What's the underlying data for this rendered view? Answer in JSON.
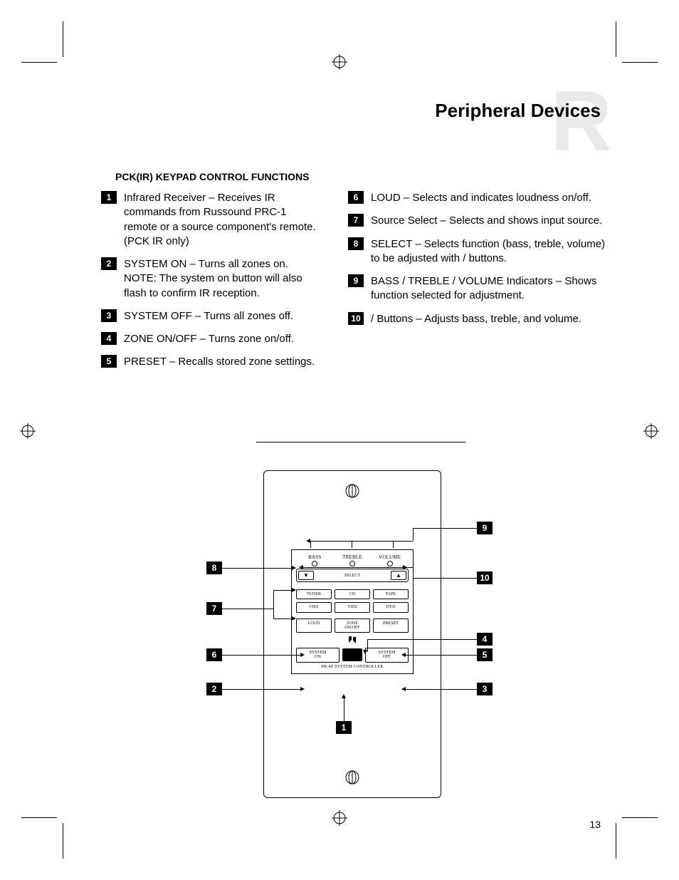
{
  "header": {
    "watermark_letter": "R",
    "page_title": "Peripheral Devices"
  },
  "section": {
    "heading": "PCK(IR) KEYPAD CONTROL FUNCTIONS"
  },
  "functions_left": [
    {
      "n": "1",
      "text": "Infrared Receiver – Receives IR commands from Russound PRC-1 remote or a source component's remote. (PCK IR only)"
    },
    {
      "n": "2",
      "text": "SYSTEM ON – Turns all zones on. NOTE: The system on button will also flash to confirm IR reception."
    },
    {
      "n": "3",
      "text": "SYSTEM OFF – Turns all zones off."
    },
    {
      "n": "4",
      "text": "ZONE ON/OFF – Turns zone on/off."
    },
    {
      "n": "5",
      "text": "PRESET – Recalls stored zone settings."
    }
  ],
  "functions_right": [
    {
      "n": "6",
      "text": "LOUD – Selects and indicates loudness on/off."
    },
    {
      "n": "7",
      "text": "Source Select – Selects and shows input source."
    },
    {
      "n": "8",
      "text": "SELECT – Selects function (bass, treble, volume) to be adjusted with    /    buttons."
    },
    {
      "n": "9",
      "text": "BASS / TREBLE / VOLUME Indicators – Shows function selected for adjustment."
    },
    {
      "n": "10",
      "text": "   /    Buttons – Adjusts bass, treble, and volume."
    }
  ],
  "keypad": {
    "indicators": [
      "BASS",
      "TREBLE",
      "VOLUME"
    ],
    "select_label": "SELECT",
    "src_row1": [
      "TUNER",
      "CD",
      "TAPE"
    ],
    "src_row2": [
      "VID1",
      "VID2",
      "DVD"
    ],
    "func_row": [
      "LOUD",
      "ZONE\nON/OFF",
      "PRESET"
    ],
    "sys_on": "SYSTEM\nON",
    "sys_off": "SYSTEM\nOFF",
    "model": "PR-4Z SYSTEM CONTROLLER"
  },
  "callouts": {
    "left": {
      "c8": "8",
      "c7": "7",
      "c6": "6",
      "c2": "2"
    },
    "right": {
      "c9": "9",
      "c10": "10",
      "c4": "4",
      "c5": "5",
      "c3": "3"
    },
    "bottom": {
      "c1": "1"
    }
  },
  "page_number": "13",
  "colors": {
    "watermark": "#e9e9e9",
    "ink": "#000000",
    "bg": "#ffffff"
  }
}
